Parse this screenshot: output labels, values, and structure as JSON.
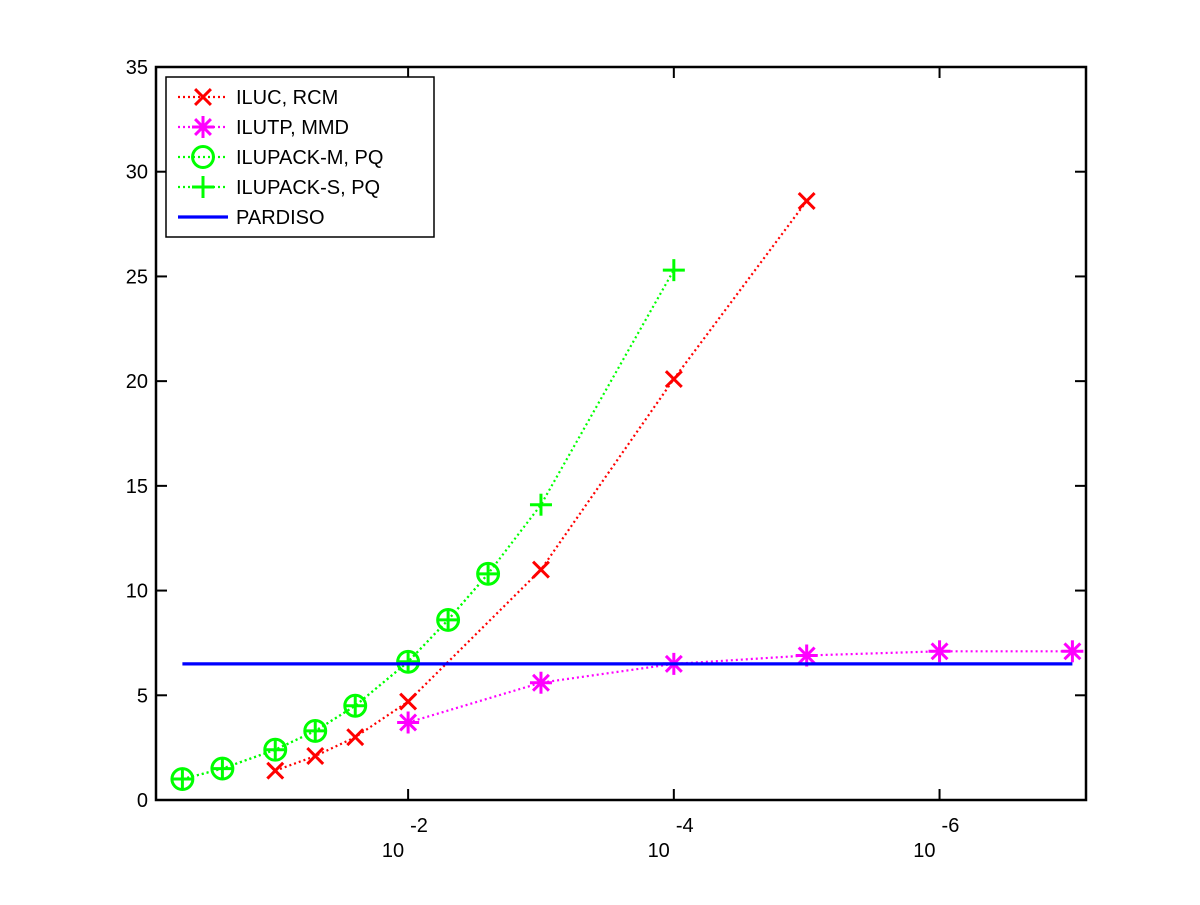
{
  "chart_data": {
    "type": "line",
    "title": "",
    "xlabel": "",
    "ylabel": "",
    "x_scale": "log",
    "x_reversed": true,
    "xlim": [
      0.79,
      7.9e-08
    ],
    "ylim": [
      0,
      35
    ],
    "x_ticks": [
      {
        "value": 0.01,
        "base": "10",
        "exponent": "-2"
      },
      {
        "value": 0.0001,
        "base": "10",
        "exponent": "-4"
      },
      {
        "value": 1e-06,
        "base": "10",
        "exponent": "-6"
      }
    ],
    "y_ticks": [
      0,
      5,
      10,
      15,
      20,
      25,
      30,
      35
    ],
    "y_tick_labels": [
      "0",
      "5",
      "10",
      "15",
      "20",
      "25",
      "30",
      "35"
    ],
    "grid": false,
    "legend_position": "top-left",
    "series": [
      {
        "name": "ILUC, RCM",
        "color": "#ff0000",
        "marker": "x",
        "line": "dotted",
        "points": [
          [
            0.1,
            1.4
          ],
          [
            0.05,
            2.1
          ],
          [
            0.025,
            3.0
          ],
          [
            0.01,
            4.7
          ],
          [
            0.001,
            11.0
          ],
          [
            0.0001,
            20.1
          ],
          [
            1e-05,
            28.6
          ]
        ]
      },
      {
        "name": "ILUTP, MMD",
        "color": "#ff00ff",
        "marker": "asterisk",
        "line": "dotted",
        "points": [
          [
            0.01,
            3.7
          ],
          [
            0.001,
            5.6
          ],
          [
            0.0001,
            6.5
          ],
          [
            1e-05,
            6.9
          ],
          [
            1e-06,
            7.1
          ],
          [
            1e-07,
            7.1
          ]
        ]
      },
      {
        "name": "ILUPACK-M, PQ",
        "color": "#00ff00",
        "marker": "circle",
        "line": "dotted",
        "points": [
          [
            0.5,
            1.0
          ],
          [
            0.25,
            1.5
          ],
          [
            0.1,
            2.4
          ],
          [
            0.05,
            3.3
          ],
          [
            0.025,
            4.5
          ],
          [
            0.01,
            6.6
          ],
          [
            0.005,
            8.6
          ],
          [
            0.0025,
            10.8
          ]
        ]
      },
      {
        "name": "ILUPACK-S, PQ",
        "color": "#00ff00",
        "marker": "plus",
        "line": "dotted",
        "points": [
          [
            0.5,
            1.0
          ],
          [
            0.25,
            1.5
          ],
          [
            0.1,
            2.4
          ],
          [
            0.05,
            3.3
          ],
          [
            0.025,
            4.5
          ],
          [
            0.01,
            6.6
          ],
          [
            0.005,
            8.6
          ],
          [
            0.0025,
            10.8
          ],
          [
            0.001,
            14.1
          ],
          [
            0.0001,
            25.3
          ]
        ]
      },
      {
        "name": "PARDISO",
        "color": "#0000ff",
        "marker": "none",
        "line": "solid",
        "points": [
          [
            0.5,
            6.5
          ],
          [
            1e-07,
            6.5
          ]
        ]
      }
    ]
  }
}
